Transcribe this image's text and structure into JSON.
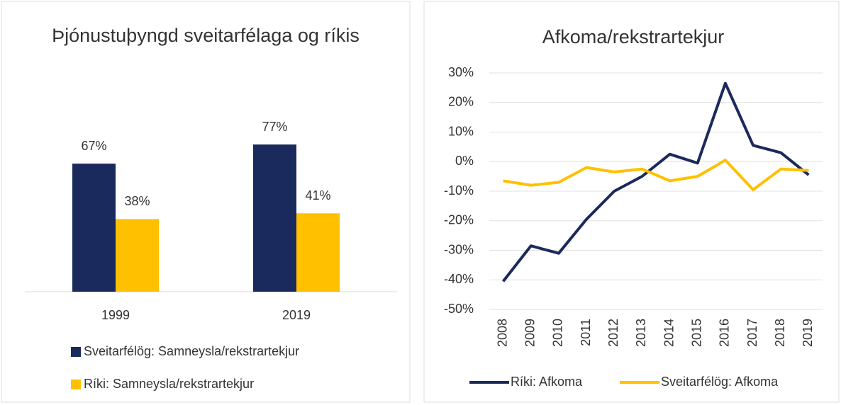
{
  "chart_data": [
    {
      "type": "bar",
      "title": "Þjónustuþyngd sveitarfélaga og ríkis",
      "categories": [
        "1999",
        "2019"
      ],
      "series": [
        {
          "name": "Sveitarfélög: Samneysla/rekstrartekjur",
          "color": "#1b2a5c",
          "values": [
            67,
            77
          ],
          "value_labels": [
            "67%",
            "77%"
          ]
        },
        {
          "name": "Ríki: Samneysla/rekstrartekjur",
          "color": "#ffc000",
          "values": [
            38,
            41
          ],
          "value_labels": [
            "38%",
            "41%"
          ]
        }
      ]
    },
    {
      "type": "line",
      "title": "Afkoma/rekstrartekjur",
      "categories": [
        "2008",
        "2009",
        "2010",
        "2011",
        "2012",
        "2013",
        "2014",
        "2015",
        "2016",
        "2017",
        "2018",
        "2019"
      ],
      "series": [
        {
          "name": "Ríki: Afkoma",
          "color": "#1b2a5c",
          "values": [
            -40.5,
            -28.5,
            -31,
            -19.5,
            -10,
            -5,
            2.5,
            -0.5,
            26.5,
            5.5,
            3,
            -4.5
          ]
        },
        {
          "name": "Sveitarfélög: Afkoma",
          "color": "#ffc000",
          "values": [
            -6.5,
            -8,
            -7,
            -2,
            -3.5,
            -2.5,
            -6.5,
            -5,
            0.5,
            -9.5,
            -2.5,
            -3
          ]
        }
      ],
      "ylim": [
        -50,
        30
      ],
      "yticks": [
        {
          "value": -50,
          "label": "-50%"
        },
        {
          "value": -40,
          "label": "-40%"
        },
        {
          "value": -30,
          "label": "-30%"
        },
        {
          "value": -20,
          "label": "-20%"
        },
        {
          "value": -10,
          "label": "-10%"
        },
        {
          "value": 0,
          "label": "0%"
        },
        {
          "value": 10,
          "label": "10%"
        },
        {
          "value": 20,
          "label": "20%"
        },
        {
          "value": 30,
          "label": "30%"
        }
      ],
      "grid": true
    }
  ]
}
